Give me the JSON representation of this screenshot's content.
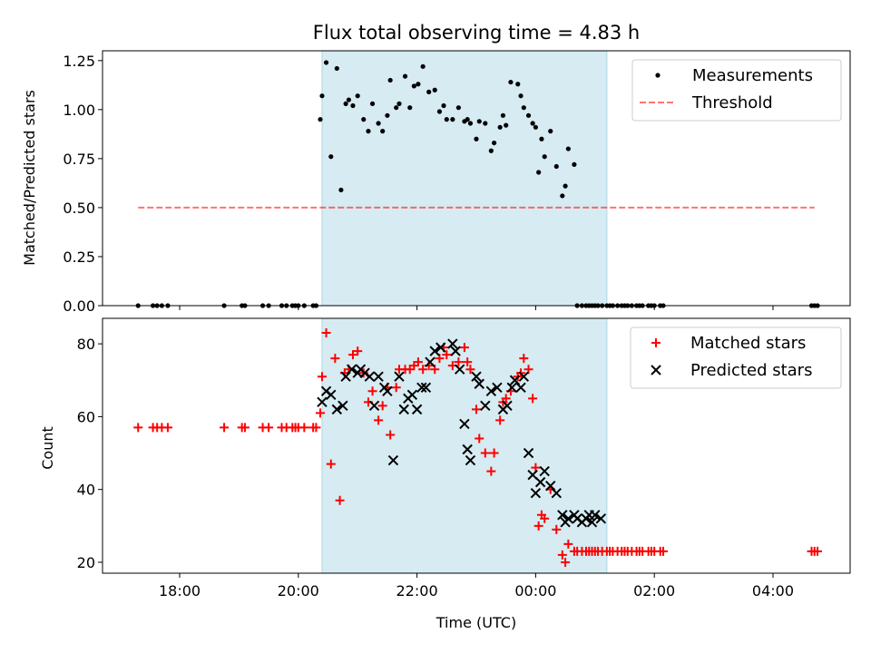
{
  "chart_data": [
    {
      "type": "scatter",
      "title": "Flux total observing time = 4.83 h",
      "xlabel": "",
      "ylabel": "Matched/Predicted stars",
      "ylim": [
        0,
        1.3
      ],
      "yticks": [
        0.0,
        0.25,
        0.5,
        0.75,
        1.0,
        1.25
      ],
      "ytick_labels": [
        "0.00",
        "0.25",
        "0.50",
        "0.75",
        "1.00",
        "1.25"
      ],
      "xlim_hours": [
        16.7,
        29.3
      ],
      "shaded_span_hours": [
        20.4,
        25.2
      ],
      "shaded_color": "#add8e6",
      "legend_position": "top-right",
      "legend": [
        {
          "label": "Measurements",
          "marker": "dot",
          "color": "#000000"
        },
        {
          "label": "Threshold",
          "marker": "dashed-line",
          "color": "#ff0000"
        }
      ],
      "threshold": {
        "value": 0.5,
        "x_range_hours": [
          17.3,
          28.7
        ]
      },
      "series": [
        {
          "name": "Measurements",
          "x_hours": [
            17.3,
            17.55,
            17.62,
            17.7,
            17.8,
            18.75,
            19.05,
            19.1,
            19.4,
            19.5,
            19.72,
            19.8,
            19.9,
            19.95,
            20.0,
            20.1,
            20.25,
            20.3,
            20.37,
            20.4,
            20.47,
            20.55,
            20.65,
            20.72,
            20.8,
            20.85,
            20.92,
            21.0,
            21.1,
            21.18,
            21.25,
            21.35,
            21.42,
            21.5,
            21.55,
            21.65,
            21.7,
            21.8,
            21.88,
            21.95,
            22.02,
            22.1,
            22.2,
            22.3,
            22.38,
            22.45,
            22.5,
            22.6,
            22.7,
            22.8,
            22.85,
            22.9,
            23.0,
            23.05,
            23.15,
            23.25,
            23.3,
            23.4,
            23.45,
            23.5,
            23.58,
            23.7,
            23.75,
            23.8,
            23.88,
            23.95,
            24.0,
            24.05,
            24.1,
            24.15,
            24.25,
            24.35,
            24.45,
            24.5,
            24.55,
            24.65,
            24.7,
            24.78,
            24.85,
            24.9,
            24.95,
            25.0,
            25.05,
            25.12,
            25.2,
            25.25,
            25.3,
            25.38,
            25.45,
            25.5,
            25.55,
            25.62,
            25.7,
            25.75,
            25.8,
            25.9,
            25.95,
            26.0,
            26.1,
            26.15,
            28.65,
            28.7,
            28.75
          ],
          "y": [
            0,
            0,
            0,
            0,
            0,
            0,
            0,
            0,
            0,
            0,
            0,
            0,
            0,
            0,
            0,
            0,
            0,
            0,
            0.95,
            1.07,
            1.24,
            0.76,
            1.21,
            0.59,
            1.03,
            1.05,
            1.02,
            1.07,
            0.95,
            0.89,
            1.03,
            0.93,
            0.89,
            0.97,
            1.15,
            1.01,
            1.03,
            1.17,
            1.01,
            1.12,
            1.13,
            1.22,
            1.09,
            1.1,
            0.99,
            1.02,
            0.95,
            0.95,
            1.01,
            0.94,
            0.95,
            0.93,
            0.85,
            0.94,
            0.93,
            0.79,
            0.83,
            0.91,
            0.97,
            0.92,
            1.14,
            1.13,
            1.07,
            1.01,
            0.97,
            0.93,
            0.91,
            0.68,
            0.85,
            0.76,
            0.89,
            0.71,
            0.56,
            0.61,
            0.8,
            0.72,
            0,
            0,
            0,
            0,
            0,
            0,
            0,
            0,
            0,
            0,
            0,
            0,
            0,
            0,
            0,
            0,
            0,
            0,
            0,
            0,
            0,
            0,
            0,
            0,
            0,
            0,
            0
          ]
        }
      ]
    },
    {
      "type": "scatter",
      "title": "",
      "xlabel": "Time (UTC)",
      "ylabel": "Count",
      "ylim": [
        17,
        87
      ],
      "yticks": [
        20,
        40,
        60,
        80
      ],
      "ytick_labels": [
        "20",
        "40",
        "60",
        "80"
      ],
      "xlim_hours": [
        16.7,
        29.3
      ],
      "xticks_hours": [
        18,
        20,
        22,
        24,
        26,
        28
      ],
      "xtick_labels": [
        "18:00",
        "20:00",
        "22:00",
        "00:00",
        "02:00",
        "04:00"
      ],
      "shaded_span_hours": [
        20.4,
        25.2
      ],
      "shaded_color": "#add8e6",
      "legend_position": "top-right",
      "legend": [
        {
          "label": "Matched stars",
          "marker": "plus",
          "color": "#ff0000"
        },
        {
          "label": "Predicted stars",
          "marker": "x",
          "color": "#000000"
        }
      ],
      "series": [
        {
          "name": "Matched stars",
          "color": "#ff0000",
          "x_hours": [
            17.3,
            17.55,
            17.62,
            17.7,
            17.8,
            18.75,
            19.05,
            19.1,
            19.4,
            19.5,
            19.72,
            19.8,
            19.9,
            19.95,
            20.0,
            20.1,
            20.25,
            20.3,
            20.37,
            20.4,
            20.47,
            20.55,
            20.62,
            20.7,
            20.78,
            20.85,
            20.92,
            21.0,
            21.1,
            21.18,
            21.25,
            21.35,
            21.42,
            21.5,
            21.55,
            21.65,
            21.7,
            21.8,
            21.88,
            21.95,
            22.02,
            22.1,
            22.2,
            22.3,
            22.38,
            22.45,
            22.5,
            22.6,
            22.7,
            22.8,
            22.85,
            22.9,
            23.0,
            23.05,
            23.15,
            23.25,
            23.3,
            23.4,
            23.45,
            23.5,
            23.58,
            23.7,
            23.75,
            23.8,
            23.88,
            23.95,
            24.0,
            24.05,
            24.1,
            24.15,
            24.25,
            24.35,
            24.45,
            24.5,
            24.55,
            24.65,
            24.7,
            24.78,
            24.85,
            24.9,
            24.95,
            25.0,
            25.05,
            25.12,
            25.2,
            25.25,
            25.3,
            25.38,
            25.45,
            25.5,
            25.55,
            25.62,
            25.7,
            25.75,
            25.8,
            25.9,
            25.95,
            26.0,
            26.1,
            26.15,
            28.65,
            28.7,
            28.75
          ],
          "y": [
            57,
            57,
            57,
            57,
            57,
            57,
            57,
            57,
            57,
            57,
            57,
            57,
            57,
            57,
            57,
            57,
            57,
            57,
            61,
            71,
            83,
            47,
            76,
            37,
            72,
            73,
            77,
            78,
            72,
            64,
            67,
            59,
            63,
            68,
            55,
            68,
            73,
            73,
            73,
            74,
            75,
            73,
            74,
            73,
            76,
            79,
            77,
            74,
            75,
            79,
            75,
            73,
            62,
            54,
            50,
            45,
            50,
            59,
            64,
            65,
            67,
            71,
            72,
            76,
            73,
            65,
            46,
            30,
            33,
            32,
            40,
            29,
            22,
            20,
            25,
            23,
            23,
            23,
            23,
            23,
            23,
            23,
            23,
            23,
            23,
            23,
            23,
            23,
            23,
            23,
            23,
            23,
            23,
            23,
            23,
            23,
            23,
            23,
            23,
            23,
            23,
            23,
            23
          ]
        },
        {
          "name": "Predicted stars",
          "color": "#000000",
          "x_hours": [
            20.4,
            20.47,
            20.55,
            20.65,
            20.75,
            20.8,
            20.9,
            21.0,
            21.05,
            21.12,
            21.2,
            21.28,
            21.35,
            21.45,
            21.5,
            21.6,
            21.7,
            21.78,
            21.85,
            21.92,
            22.0,
            22.08,
            22.15,
            22.22,
            22.3,
            22.4,
            22.6,
            22.65,
            22.72,
            22.8,
            22.85,
            22.9,
            23.0,
            23.05,
            23.15,
            23.25,
            23.35,
            23.45,
            23.52,
            23.6,
            23.65,
            23.75,
            23.8,
            23.88,
            23.95,
            24.0,
            24.08,
            24.15,
            24.25,
            24.35,
            24.45,
            24.5,
            24.55,
            24.65,
            24.7,
            24.78,
            24.85,
            24.9,
            24.95,
            25.0,
            25.1
          ],
          "y": [
            64,
            67,
            66,
            62,
            63,
            71,
            73,
            72,
            73,
            72,
            71,
            63,
            71,
            68,
            67,
            48,
            71,
            62,
            65,
            66,
            62,
            68,
            68,
            75,
            78,
            79,
            80,
            78,
            73,
            58,
            51,
            48,
            71,
            69,
            63,
            67,
            68,
            62,
            63,
            68,
            70,
            68,
            71,
            50,
            44,
            39,
            42,
            45,
            41,
            39,
            33,
            31,
            32,
            33,
            32,
            31,
            32,
            33,
            31,
            33,
            32
          ]
        }
      ]
    }
  ]
}
